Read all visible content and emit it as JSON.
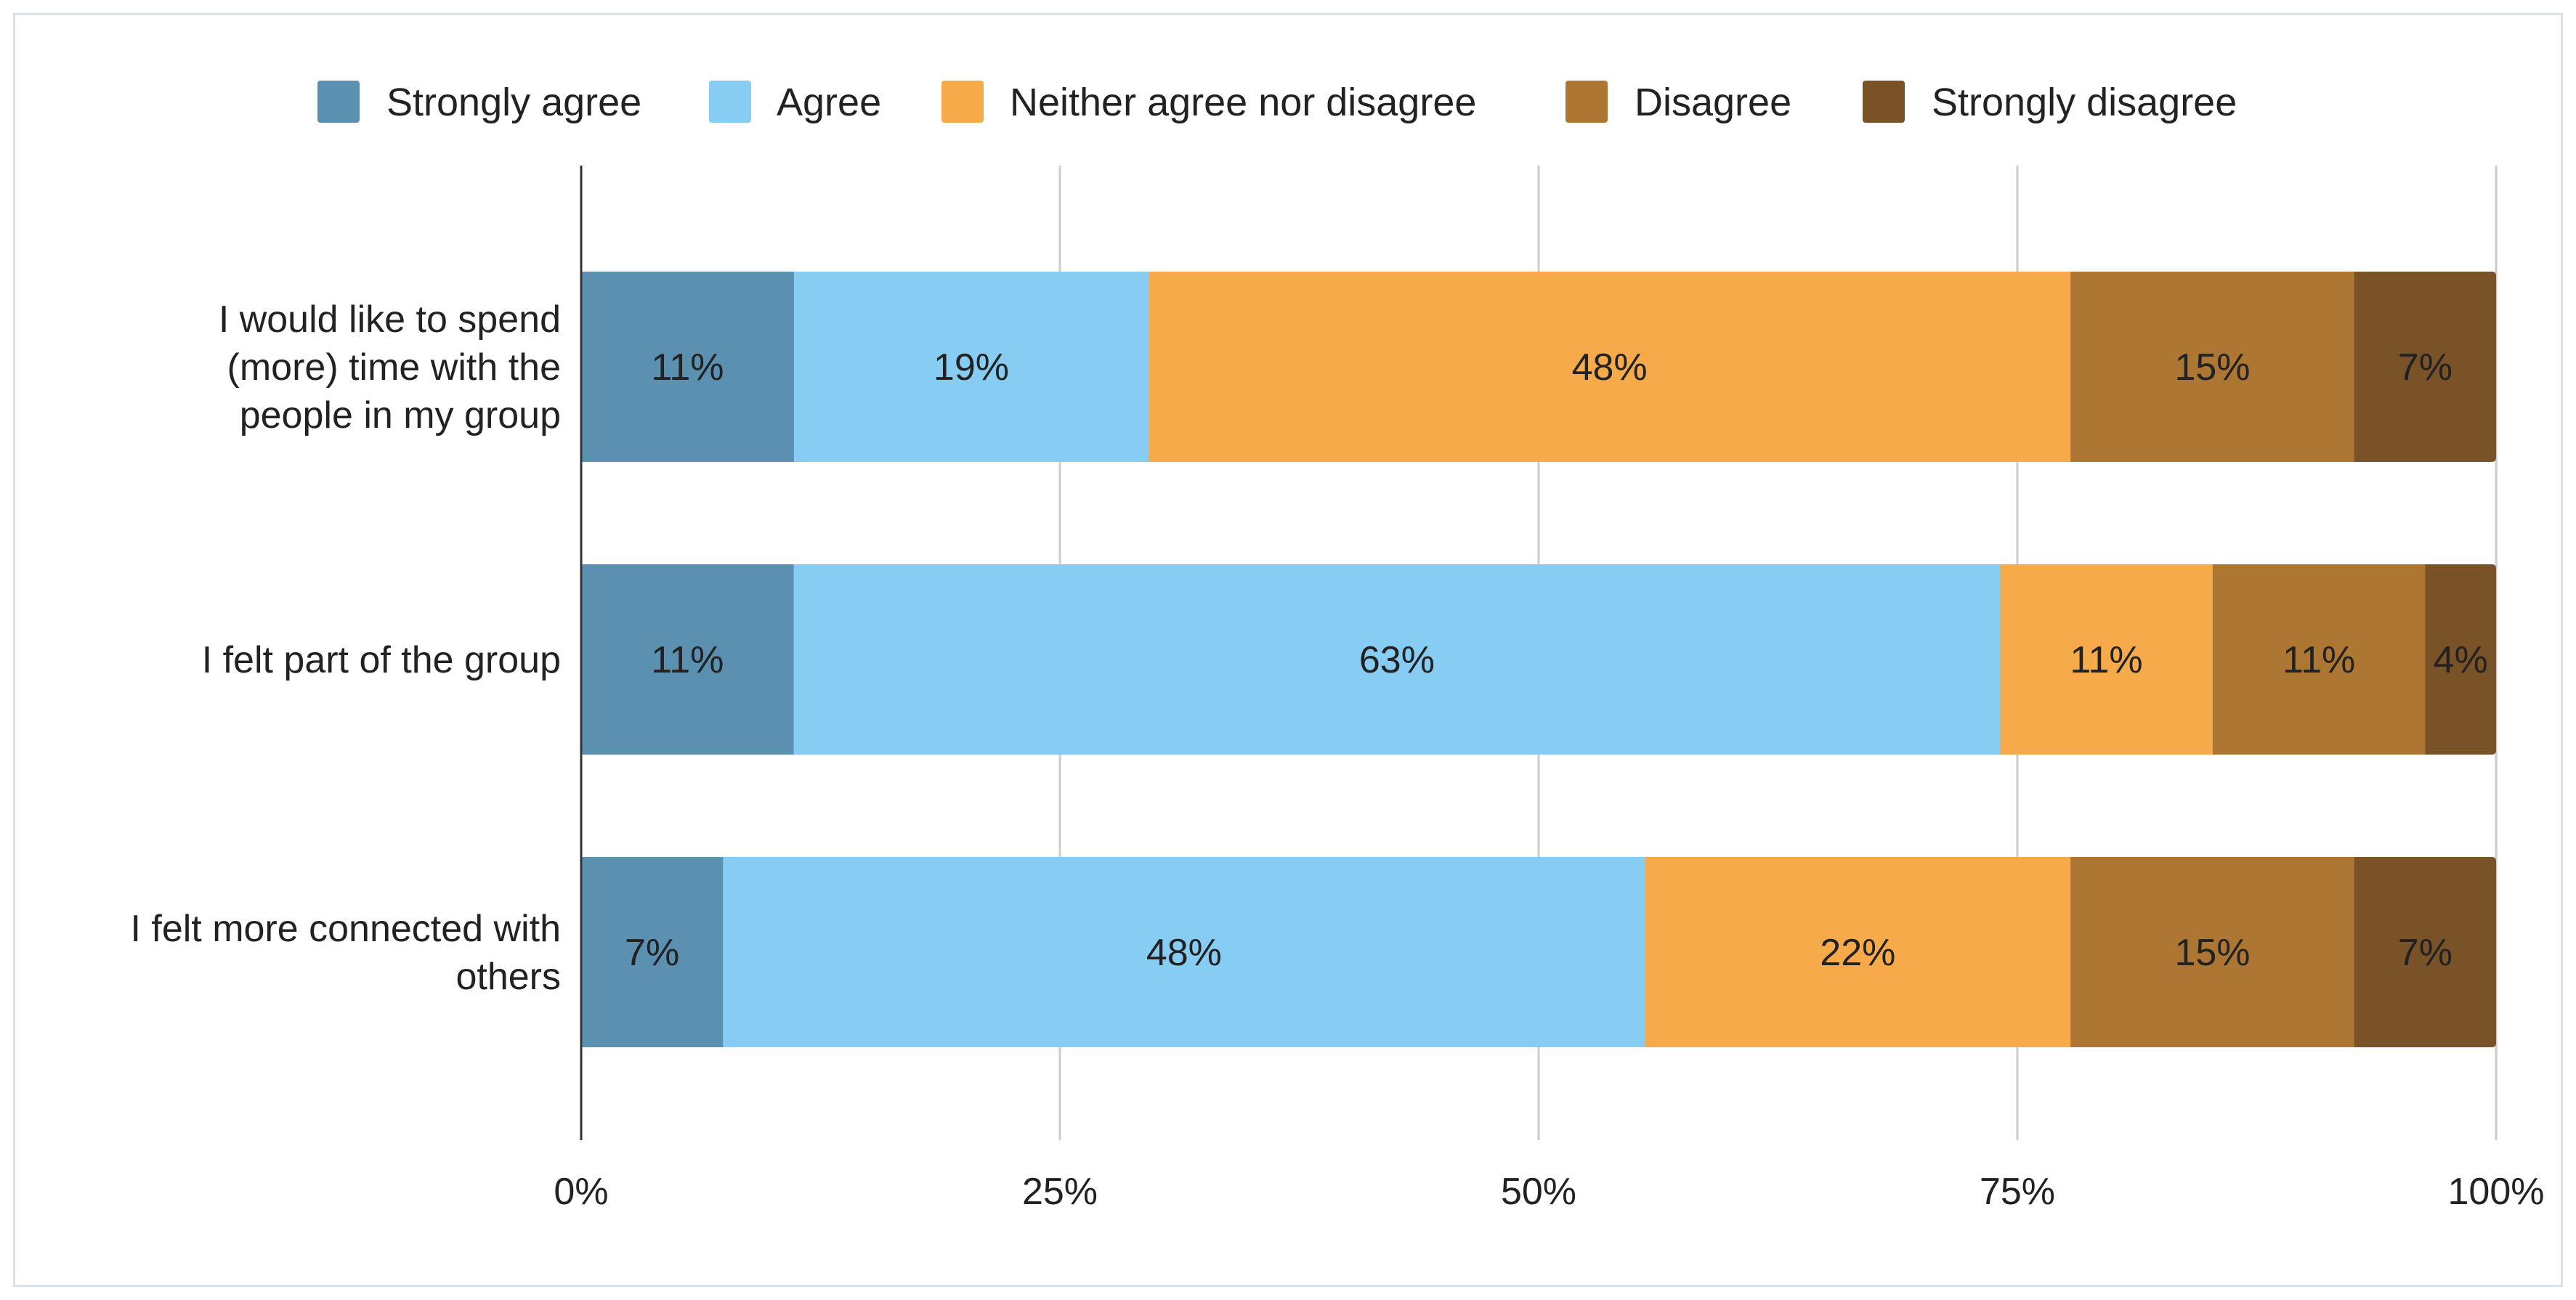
{
  "chart_data": {
    "type": "bar",
    "orientation": "horizontal",
    "stacked": true,
    "categories": [
      "I would like to spend (more) time with the people in my group",
      "I felt part of the group",
      "I felt more connected with others"
    ],
    "category_lines": [
      [
        "I would like to spend",
        "(more) time with the",
        "people in my group"
      ],
      [
        "I felt part of the group"
      ],
      [
        "I felt more connected with",
        "others"
      ]
    ],
    "series": [
      {
        "name": "Strongly agree",
        "color": "#5b90b1",
        "values": [
          11.1,
          11.1,
          7.4
        ],
        "labels": [
          "11%",
          "11%",
          "7%"
        ]
      },
      {
        "name": "Agree",
        "color": "#87ccf3",
        "values": [
          18.5,
          63.0,
          48.1
        ],
        "labels": [
          "19%",
          "63%",
          "48%"
        ]
      },
      {
        "name": "Neither agree nor disagree",
        "color": "#f7aa4a",
        "values": [
          48.1,
          11.1,
          22.2
        ],
        "labels": [
          "48%",
          "11%",
          "22%"
        ]
      },
      {
        "name": "Disagree",
        "color": "#ad7633",
        "values": [
          14.8,
          11.1,
          14.8
        ],
        "labels": [
          "15%",
          "11%",
          "15%"
        ]
      },
      {
        "name": "Strongly disagree",
        "color": "#7a5227",
        "values": [
          7.4,
          3.7,
          7.4
        ],
        "labels": [
          "7%",
          "4%",
          "7%"
        ]
      }
    ],
    "xlim": [
      0,
      100
    ],
    "xticks": [
      0,
      25,
      50,
      75,
      100
    ],
    "xtick_labels": [
      "0%",
      "25%",
      "50%",
      "75%",
      "100%"
    ],
    "grid": true,
    "legend": "top-center",
    "title": "",
    "xlabel": "",
    "ylabel": ""
  }
}
